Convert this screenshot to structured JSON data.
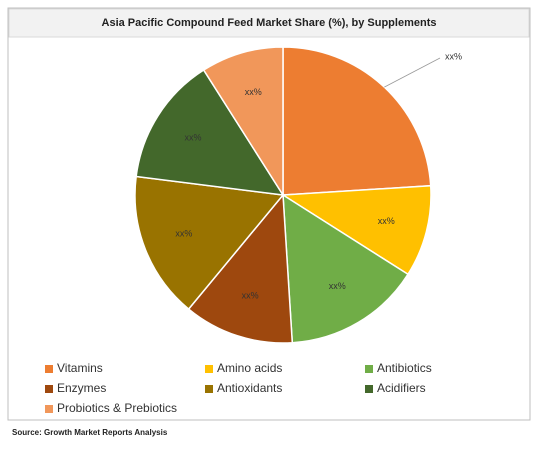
{
  "chart_data": {
    "type": "pie",
    "title": "Asia Pacific Compound Feed Market Share (%), by Supplements",
    "categories": [
      "Vitamins",
      "Amino acids",
      "Antibiotics",
      "Enzymes",
      "Antioxidants",
      "Acidifiers",
      "Probiotics & Prebiotics"
    ],
    "values": [
      24,
      10,
      15,
      12,
      16,
      14,
      9
    ],
    "value_labels": [
      "xx%",
      "xx%",
      "xx%",
      "xx%",
      "xx%",
      "xx%",
      "xx%"
    ],
    "colors": [
      "#ED7D31",
      "#FFC000",
      "#70AD47",
      "#9E480E",
      "#997300",
      "#43682B",
      "#F1975A"
    ],
    "source": "Source: Growth Market Reports Analysis"
  }
}
